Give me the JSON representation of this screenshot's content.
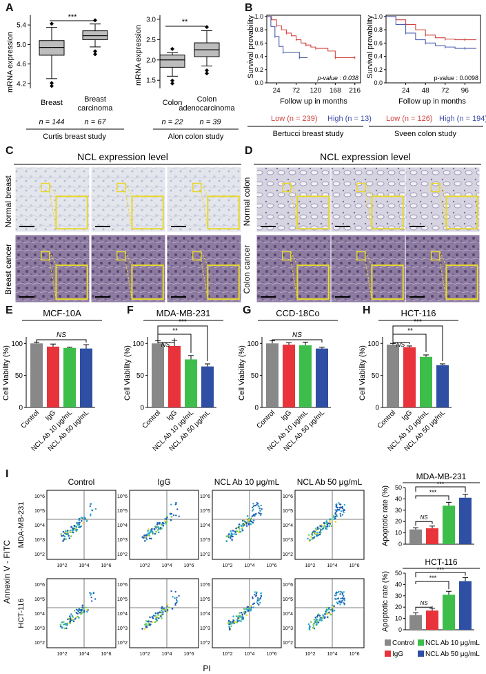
{
  "panels": {
    "A": "A",
    "B": "B",
    "C": "C",
    "D": "D",
    "E": "E",
    "F": "F",
    "G": "G",
    "H": "H",
    "I": "I"
  },
  "colors": {
    "gray": "#888888",
    "red": "#e8333a",
    "green": "#3dbe4b",
    "blue": "#2e4fa3",
    "km_low": "#d0443f",
    "km_high": "#4c5fb0",
    "gate": "#555555",
    "micro_pale": "#dde0ea",
    "micro_purple": "#7a6790",
    "yellow": "#e8d82a"
  },
  "icons": {
    "boxplot_outlier": "diamond-marker",
    "significance": "bracket-line"
  },
  "boxA": {
    "ylabel": "mRNA expression",
    "curtis": {
      "yticks": [
        "4.2",
        "4.6",
        "5.0",
        "5.4"
      ],
      "cats": [
        "Breast",
        "Breast\ncarcinoma"
      ],
      "ns": [
        "n = 144",
        "n = 67"
      ],
      "study": "Curtis breast study",
      "sig": "***"
    },
    "alon": {
      "yticks": [
        "1.5",
        "2.0",
        "2.5",
        "3.0"
      ],
      "cats": [
        "Colon",
        "Colon\nadenocarcinoma"
      ],
      "ns": [
        "n = 22",
        "n = 39"
      ],
      "study": "Alon colon study",
      "sig": "**"
    }
  },
  "kmB": {
    "ylabel": "Survival provability",
    "xlabel": "Follow up in months",
    "yticks": [
      "0.0",
      "0.2",
      "0.4",
      "0.6",
      "0.8",
      "1.0"
    ],
    "bertucci": {
      "xticks": [
        "24",
        "72",
        "120",
        "168",
        "216"
      ],
      "p": "p-value : 0.038",
      "low": "Low (n = 239)",
      "high": "High (n = 13)",
      "study": "Bertucci breast study"
    },
    "sveen": {
      "xticks": [
        "24",
        "48",
        "72",
        "96"
      ],
      "p": "p-value : 0.0098",
      "low": "Low (n = 126)",
      "high": "High (n = 194)",
      "study": "Sveen colon study"
    }
  },
  "ihc": {
    "title": "NCL expression level",
    "C_rows": [
      "Normal breast",
      "Breast cancer"
    ],
    "D_rows": [
      "Normal colon",
      "Colon cancer"
    ]
  },
  "viability": {
    "ylabel": "Cell Viability (%)",
    "yticks": [
      "0",
      "50",
      "100"
    ],
    "cats": [
      "Control",
      "IgG",
      "NCL Ab 10 μg/mL",
      "NCL Ab 50 μg/mL"
    ],
    "ns": "NS",
    "sig2": "**",
    "sig3": "***",
    "E": {
      "title": "MCF-10A"
    },
    "F": {
      "title": "MDA-MB-231"
    },
    "G": {
      "title": "CCD-18Co"
    },
    "H": {
      "title": "HCT-116"
    }
  },
  "flow": {
    "conds": [
      "Control",
      "IgG",
      "NCL Ab 10 μg/mL",
      "NCL Ab 50 μg/mL"
    ],
    "rows": [
      "MDA-MB-231",
      "HCT-116"
    ],
    "ylabel": "Annexin V - FITC",
    "xlabel": "PI",
    "yticks": [
      "10^6",
      "10^5",
      "10^4",
      "10^3",
      "10^2"
    ],
    "xticks": [
      "10^2",
      "10^4",
      "10^6"
    ]
  },
  "apop": {
    "ylabel": "Apoptotic rate (%)",
    "yticks": [
      "0",
      "10",
      "20",
      "30",
      "40",
      "50"
    ],
    "ns": "NS",
    "sig": "***",
    "legend": [
      "Control",
      "NCL Ab 10 μg/mL",
      "IgG",
      "NCL Ab 50 μg/mL"
    ],
    "mda": {
      "title": "MDA-MB-231"
    },
    "hct": {
      "title": "HCT-116"
    }
  },
  "chart_data": [
    {
      "type": "box",
      "id": "A-curtis",
      "categories": [
        "Breast",
        "Breast carcinoma"
      ],
      "ylim": [
        4.1,
        5.6
      ],
      "stats": [
        {
          "min": 4.3,
          "q1": 4.78,
          "median": 4.94,
          "q3": 5.08,
          "max": 5.35
        },
        {
          "min": 4.95,
          "q1": 5.1,
          "median": 5.18,
          "q3": 5.28,
          "max": 5.42
        }
      ]
    },
    {
      "type": "box",
      "id": "A-alon",
      "categories": [
        "Colon",
        "Colon adenocarcinoma"
      ],
      "ylim": [
        1.3,
        3.1
      ],
      "stats": [
        {
          "min": 1.6,
          "q1": 1.82,
          "median": 2.0,
          "q3": 2.12,
          "max": 2.18
        },
        {
          "min": 1.85,
          "q1": 2.08,
          "median": 2.25,
          "q3": 2.42,
          "max": 2.72
        }
      ]
    },
    {
      "type": "line",
      "id": "B-bertucci",
      "xlim": [
        0,
        230
      ],
      "ylim": [
        0,
        1.02
      ],
      "series": [
        {
          "name": "Low (n = 239)",
          "x": [
            0,
            12,
            24,
            36,
            48,
            60,
            72,
            84,
            96,
            108,
            120,
            150,
            168,
            190,
            216
          ],
          "y": [
            1.0,
            0.95,
            0.86,
            0.8,
            0.75,
            0.71,
            0.65,
            0.6,
            0.57,
            0.54,
            0.52,
            0.48,
            0.38,
            0.38,
            0.38
          ]
        },
        {
          "name": "High (n = 13)",
          "x": [
            0,
            10,
            20,
            30,
            40,
            60,
            80,
            100
          ],
          "y": [
            1.0,
            0.85,
            0.7,
            0.55,
            0.46,
            0.46,
            0.38,
            0.38
          ]
        }
      ]
    },
    {
      "type": "line",
      "id": "B-sveen",
      "xlim": [
        0,
        115
      ],
      "ylim": [
        0,
        1.02
      ],
      "series": [
        {
          "name": "Low (n = 126)",
          "x": [
            0,
            12,
            24,
            36,
            48,
            60,
            72,
            84,
            96,
            110
          ],
          "y": [
            1.0,
            0.95,
            0.88,
            0.8,
            0.72,
            0.68,
            0.66,
            0.65,
            0.65,
            0.65
          ]
        },
        {
          "name": "High (n = 194)",
          "x": [
            0,
            12,
            24,
            36,
            48,
            60,
            72,
            84,
            96,
            110
          ],
          "y": [
            1.0,
            0.88,
            0.75,
            0.65,
            0.6,
            0.56,
            0.54,
            0.52,
            0.52,
            0.52
          ]
        }
      ]
    },
    {
      "type": "bar",
      "id": "E",
      "categories": [
        "Control",
        "IgG",
        "NCL Ab 10 μg/mL",
        "NCL Ab 50 μg/mL"
      ],
      "values": [
        100,
        95,
        93,
        92
      ],
      "errors": [
        2,
        4,
        1,
        6
      ],
      "ylim": [
        0,
        110
      ]
    },
    {
      "type": "bar",
      "id": "F",
      "categories": [
        "Control",
        "IgG",
        "NCL Ab 10 μg/mL",
        "NCL Ab 50 μg/mL"
      ],
      "values": [
        100,
        96,
        75,
        64
      ],
      "errors": [
        4,
        9,
        6,
        4
      ],
      "ylim": [
        0,
        110
      ]
    },
    {
      "type": "bar",
      "id": "G",
      "categories": [
        "Control",
        "IgG",
        "NCL Ab 10 μg/mL",
        "NCL Ab 50 μg/mL"
      ],
      "values": [
        100,
        98,
        97,
        92
      ],
      "errors": [
        4,
        3,
        5,
        2
      ],
      "ylim": [
        0,
        110
      ]
    },
    {
      "type": "bar",
      "id": "H",
      "categories": [
        "Control",
        "IgG",
        "NCL Ab 10 μg/mL",
        "NCL Ab 50 μg/mL"
      ],
      "values": [
        98,
        94,
        79,
        66
      ],
      "errors": [
        2,
        2,
        3,
        2
      ],
      "ylim": [
        0,
        110
      ]
    },
    {
      "type": "bar",
      "id": "I-MDA-MB-231",
      "categories": [
        "Control",
        "IgG",
        "NCL Ab 10 μg/mL",
        "NCL Ab 50 μg/mL"
      ],
      "values": [
        13,
        14,
        34,
        41
      ],
      "errors": [
        1.5,
        2,
        3,
        3
      ],
      "ylim": [
        0,
        50
      ]
    },
    {
      "type": "bar",
      "id": "I-HCT-116",
      "categories": [
        "Control",
        "IgG",
        "NCL Ab 10 μg/mL",
        "NCL Ab 50 μg/mL"
      ],
      "values": [
        13,
        17,
        31,
        43
      ],
      "errors": [
        2,
        2,
        3,
        3
      ],
      "ylim": [
        0,
        50
      ]
    }
  ]
}
